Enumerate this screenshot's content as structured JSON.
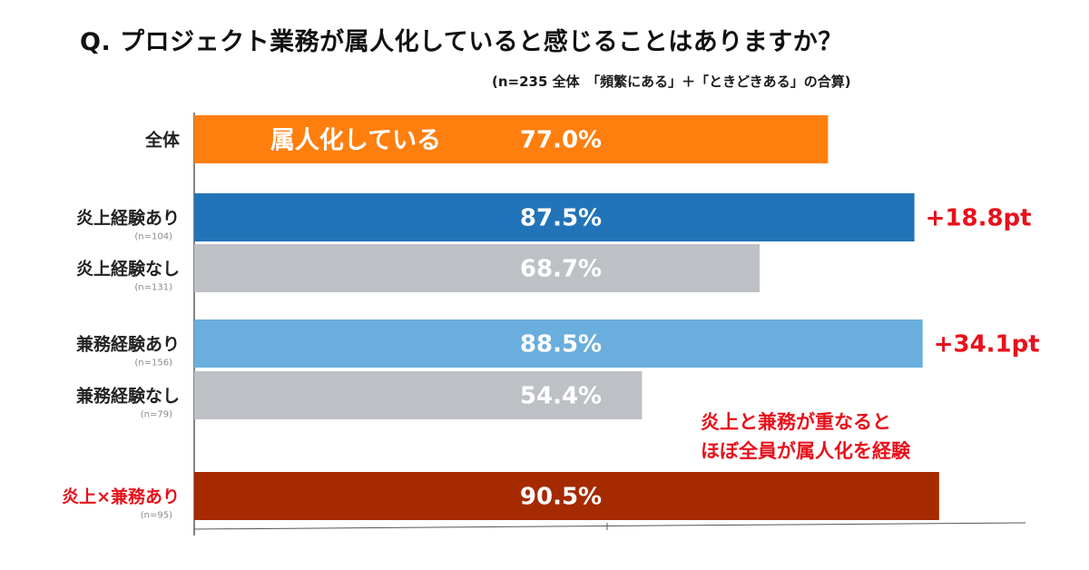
{
  "title": "Q.  プロジェクト業務が属人化していると感じることはありますか？",
  "subtitle": "(n=235 全体　「頻繁にある」＋「ときどきある」の合算)",
  "chart_data": {
    "type": "bar",
    "orientation": "horizontal",
    "xlim": [
      0,
      100
    ],
    "categories": [
      {
        "label": "全体",
        "n": "",
        "value": 77.0,
        "value_label": "77.0%",
        "color": "#ff7f0e",
        "label_color": "#222222",
        "inbar_label": "属人化している",
        "diff": ""
      },
      {
        "label": "炎上経験あり",
        "n": "(n=104)",
        "value": 87.5,
        "value_label": "87.5%",
        "color": "#2274b8",
        "label_color": "#222222",
        "inbar_label": "",
        "diff": "+18.8pt"
      },
      {
        "label": "炎上経験なし",
        "n": "(n=131)",
        "value": 68.7,
        "value_label": "68.7%",
        "color": "#bdc0c5",
        "label_color": "#222222",
        "inbar_label": "",
        "diff": ""
      },
      {
        "label": "兼務経験あり",
        "n": "(n=156)",
        "value": 88.5,
        "value_label": "88.5%",
        "color": "#6aaede",
        "label_color": "#222222",
        "inbar_label": "",
        "diff": "+34.1pt"
      },
      {
        "label": "兼務経験なし",
        "n": "(n=79)",
        "value": 54.4,
        "value_label": "54.4%",
        "color": "#bdc0c5",
        "label_color": "#222222",
        "inbar_label": "",
        "diff": ""
      },
      {
        "label": "炎上×兼務あり",
        "n": "(n=95)",
        "value": 90.5,
        "value_label": "90.5%",
        "color": "#a52a00",
        "label_color": "#e8101b",
        "inbar_label": "",
        "diff": ""
      }
    ],
    "annotation": [
      "炎上と兼務が重なると",
      "ほぼ全員が属人化を経験"
    ]
  }
}
